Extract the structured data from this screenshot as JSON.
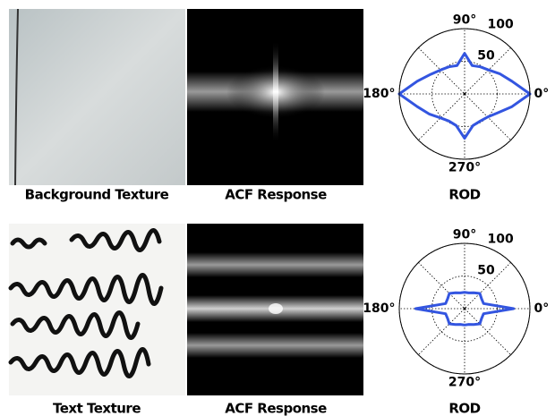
{
  "rows": [
    {
      "texture_label": "Background Texture",
      "acf_label": "ACF Response"
    },
    {
      "texture_label": "Text Texture",
      "acf_label": "ACF Response"
    }
  ],
  "chart_data": [
    {
      "type": "polar",
      "title": "ROD",
      "color": "#3355e0",
      "theta": [
        0,
        15,
        30,
        45,
        60,
        75,
        90,
        105,
        120,
        135,
        150,
        165,
        180,
        195,
        210,
        225,
        240,
        255,
        270,
        285,
        300,
        315,
        330,
        345
      ],
      "r": [
        100,
        75,
        62,
        52,
        48,
        45,
        62,
        45,
        48,
        52,
        60,
        75,
        100,
        75,
        62,
        52,
        48,
        50,
        68,
        50,
        48,
        50,
        58,
        75
      ],
      "rlim": [
        0,
        100
      ],
      "rticks": [
        50,
        100
      ],
      "thetaticks": [
        {
          "value": 0,
          "label": "0°"
        },
        {
          "value": 90,
          "label": "90°"
        },
        {
          "value": 180,
          "label": "180°"
        },
        {
          "value": 270,
          "label": "270°"
        }
      ]
    },
    {
      "type": "polar",
      "title": "ROD",
      "color": "#3355e0",
      "theta": [
        0,
        15,
        30,
        45,
        60,
        75,
        90,
        105,
        120,
        135,
        150,
        165,
        180,
        195,
        210,
        225,
        240,
        255,
        270,
        285,
        300,
        315,
        330,
        345
      ],
      "r": [
        75,
        30,
        30,
        33,
        28,
        25,
        25,
        25,
        28,
        33,
        30,
        30,
        75,
        30,
        30,
        33,
        28,
        25,
        25,
        25,
        28,
        33,
        30,
        30
      ],
      "rlim": [
        0,
        100
      ],
      "rticks": [
        50,
        100
      ],
      "thetaticks": [
        {
          "value": 0,
          "label": "0°"
        },
        {
          "value": 90,
          "label": "90°"
        },
        {
          "value": 180,
          "label": "180°"
        },
        {
          "value": 270,
          "label": "270°"
        }
      ]
    }
  ]
}
